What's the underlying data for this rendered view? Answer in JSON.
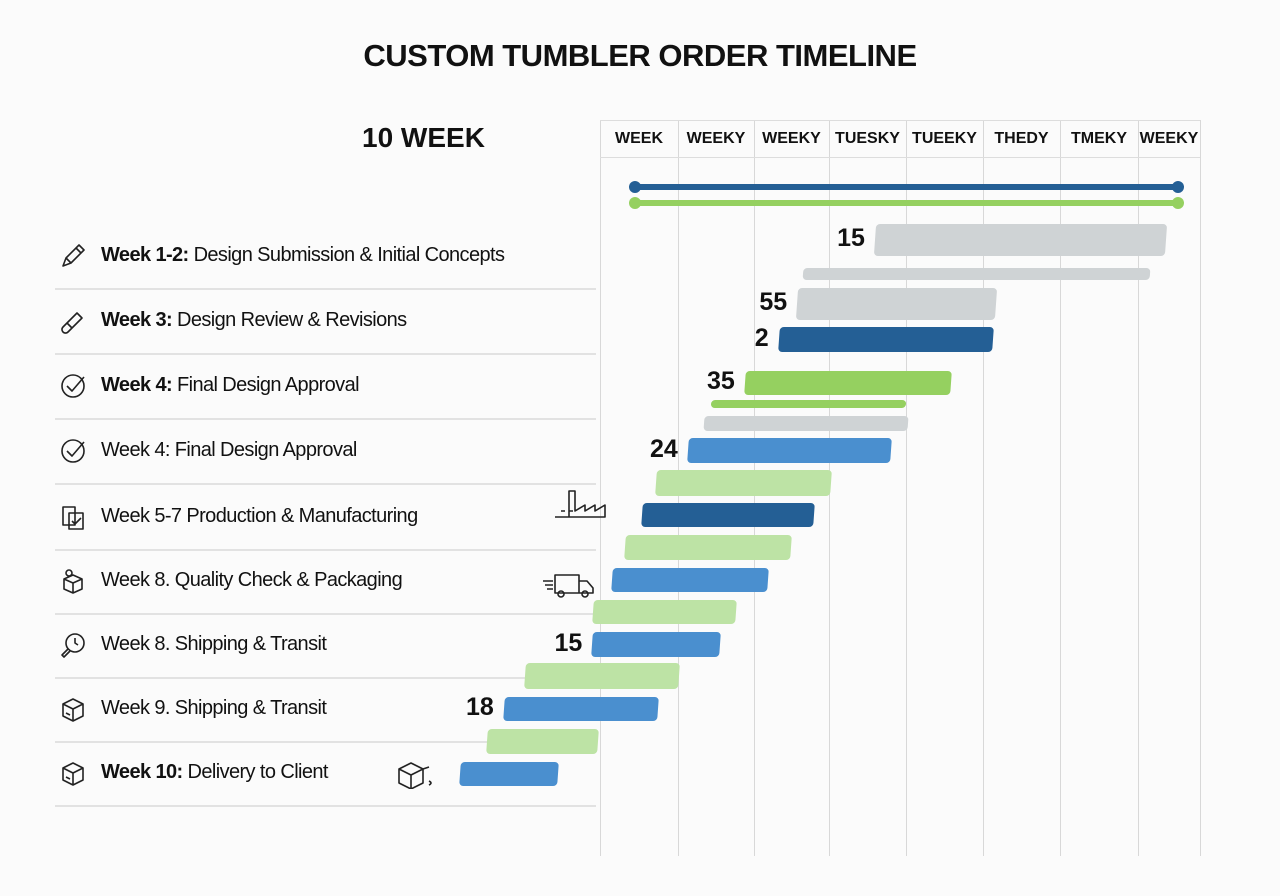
{
  "chart_data": {
    "type": "bar",
    "title": "CUSTOM TUMBLER ORDER TIMELINE",
    "duration_label": "10 WEEK",
    "column_headers": [
      "WEEK",
      "WEEKY",
      "WEEKY",
      "TUESKY",
      "TUEEKY",
      "THEDY",
      "TMEKY",
      "WEEKY"
    ],
    "timeline_lines": [
      {
        "color": "#245f95",
        "start": 0.45,
        "end": 7.5
      },
      {
        "color": "#95d060",
        "start": 0.45,
        "end": 7.5
      }
    ],
    "tasks": [
      {
        "prefix": "Week 1-2:",
        "text": " Design Submission & Initial Concepts",
        "icon": "pencil-icon"
      },
      {
        "prefix": "Week 3:",
        "text": " Design Review & Revisions",
        "icon": "eraser-pencil-icon"
      },
      {
        "prefix": "Week 4:",
        "text": " Final Design Approval",
        "icon": "check-circle-icon"
      },
      {
        "prefix": "",
        "text": "Week 4: Final Design Approval",
        "icon": "check-circle-icon"
      },
      {
        "prefix": "",
        "text": "Week 5-7 Production & Manufacturing",
        "icon": "document-check-icon",
        "side_icon": "factory-icon"
      },
      {
        "prefix": "",
        "text": "Week 8. Quality Check & Packaging",
        "icon": "package-person-icon",
        "side_icon": "delivery-truck-icon"
      },
      {
        "prefix": "",
        "text": "Week 8. Shipping & Transit",
        "icon": "clock-search-icon"
      },
      {
        "prefix": "",
        "text": "Week 9. Shipping & Transit",
        "icon": "box-icon"
      },
      {
        "prefix": "",
        "text": "Week 10:",
        "text2": " Delivery to Client",
        "icon": "box-icon",
        "side_icon": "open-box-icon"
      }
    ],
    "bars": [
      {
        "start": 3.57,
        "end": 7.35,
        "color": "#cfd3d5",
        "label": "15"
      },
      {
        "start": 2.64,
        "end": 7.14,
        "color": "#cfd3d5"
      },
      {
        "start": 2.56,
        "end": 5.14,
        "color": "#cfd3d5",
        "label": "55"
      },
      {
        "start": 2.32,
        "end": 5.1,
        "color": "#245f95",
        "label": "2"
      },
      {
        "start": 1.88,
        "end": 4.55,
        "color": "#95d060",
        "label": "35"
      },
      {
        "start": 1.44,
        "end": 3.97,
        "color": "#95d060"
      },
      {
        "start": 1.35,
        "end": 4.0,
        "color": "#cfd3d5"
      },
      {
        "start": 1.14,
        "end": 3.78,
        "color": "#4a8fcf",
        "label": "24"
      },
      {
        "start": 0.73,
        "end": 3.0,
        "color": "#bde3a5"
      },
      {
        "start": 0.55,
        "end": 2.79,
        "color": "#245f95"
      },
      {
        "start": 0.32,
        "end": 2.48,
        "color": "#bde3a5"
      },
      {
        "start": 0.16,
        "end": 2.18,
        "color": "#4a8fcf"
      },
      {
        "start": -0.09,
        "end": 1.77,
        "color": "#bde3a5"
      },
      {
        "start": -0.1,
        "end": 1.56,
        "color": "#4a8fcf",
        "label": "15"
      },
      {
        "start": -0.97,
        "end": 1.03,
        "color": "#bde3a5"
      },
      {
        "start": -1.25,
        "end": 0.75,
        "color": "#4a8fcf",
        "label": "18"
      },
      {
        "start": -1.47,
        "end": -0.03,
        "color": "#bde3a5"
      },
      {
        "start": -1.82,
        "end": -0.55,
        "color": "#4a8fcf"
      }
    ]
  }
}
